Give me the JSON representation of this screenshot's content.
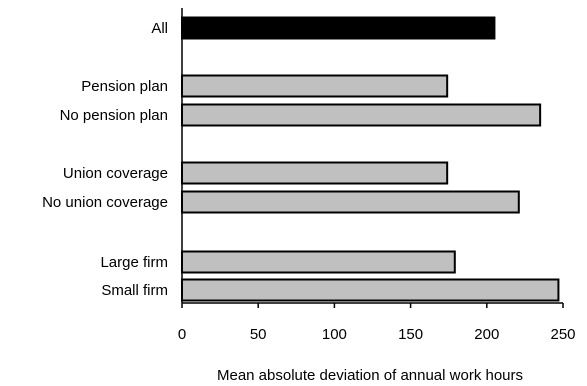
{
  "chart_data": {
    "type": "bar",
    "orientation": "horizontal",
    "title": "",
    "xlabel": "Mean absolute deviation of annual work hours",
    "ylabel": "",
    "xlim": [
      0,
      250
    ],
    "x_ticks": [
      "0",
      "50",
      "100",
      "150",
      "200",
      "250"
    ],
    "grid": false,
    "legend": "none",
    "categories": [
      "All",
      "Pension plan",
      "No pension plan",
      "Union coverage",
      "No union coverage",
      "Large firm",
      "Small firm"
    ],
    "values": [
      205,
      174,
      235,
      174,
      221,
      179,
      247
    ],
    "bar_colors": [
      "#000000",
      "#c0c0c0",
      "#c0c0c0",
      "#c0c0c0",
      "#c0c0c0",
      "#c0c0c0",
      "#c0c0c0"
    ]
  }
}
